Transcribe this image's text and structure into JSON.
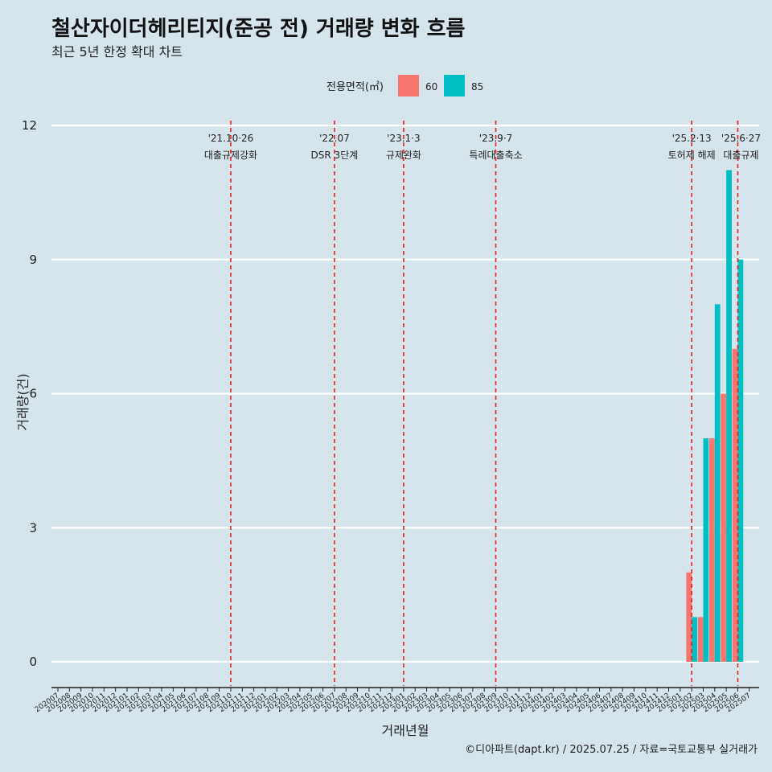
{
  "chart_data": {
    "type": "bar",
    "title": "철산자이더헤리티지(준공 전) 거래량 변화 흐름",
    "subtitle": "최근 5년 한정 확대 차트",
    "xlabel": "거래년월",
    "ylabel": "거래량(건)",
    "ylim": [
      0,
      12
    ],
    "yticks": [
      0,
      3,
      6,
      9,
      12
    ],
    "grid": true,
    "legend": {
      "title": "전용면적(㎡)",
      "placement": "top"
    },
    "categories": [
      "202007",
      "202008",
      "202009",
      "202010",
      "202011",
      "202012",
      "202101",
      "202102",
      "202103",
      "202104",
      "202105",
      "202106",
      "202107",
      "202108",
      "202109",
      "202110",
      "202111",
      "202112",
      "202201",
      "202202",
      "202203",
      "202204",
      "202205",
      "202206",
      "202207",
      "202208",
      "202209",
      "202210",
      "202211",
      "202212",
      "202301",
      "202302",
      "202303",
      "202304",
      "202305",
      "202306",
      "202307",
      "202308",
      "202309",
      "202310",
      "202311",
      "202312",
      "202401",
      "202402",
      "202403",
      "202404",
      "202405",
      "202406",
      "202407",
      "202408",
      "202409",
      "202410",
      "202411",
      "202412",
      "202501",
      "202502",
      "202503",
      "202504",
      "202505",
      "202506",
      "202507"
    ],
    "series": [
      {
        "name": "60",
        "color": "#f8766d",
        "values": {
          "202502": 2,
          "202503": 1,
          "202504": 5,
          "202505": 6,
          "202506": 7
        }
      },
      {
        "name": "85",
        "color": "#00bfc4",
        "values": {
          "202502": 1,
          "202503": 5,
          "202504": 8,
          "202505": 11,
          "202506": 9
        }
      }
    ],
    "events": [
      {
        "date": "'21.10·26",
        "label": "대출규제강화",
        "month": "202110"
      },
      {
        "date": "'22.07",
        "label": "DSR 3단계",
        "month": "202207"
      },
      {
        "date": "'23.1·3",
        "label": "규제완화",
        "month": "202301"
      },
      {
        "date": "'23.9·7",
        "label": "특례대출축소",
        "month": "202309"
      },
      {
        "date": "'25.2·13",
        "label": "토허제 해제",
        "month": "202502"
      },
      {
        "date": "'25.6·27",
        "label": "대출규제",
        "month": "202506"
      }
    ],
    "caption": "©디아파트(dapt.kr) / 2025.07.25 / 자료=국토교통부 실거래가"
  }
}
